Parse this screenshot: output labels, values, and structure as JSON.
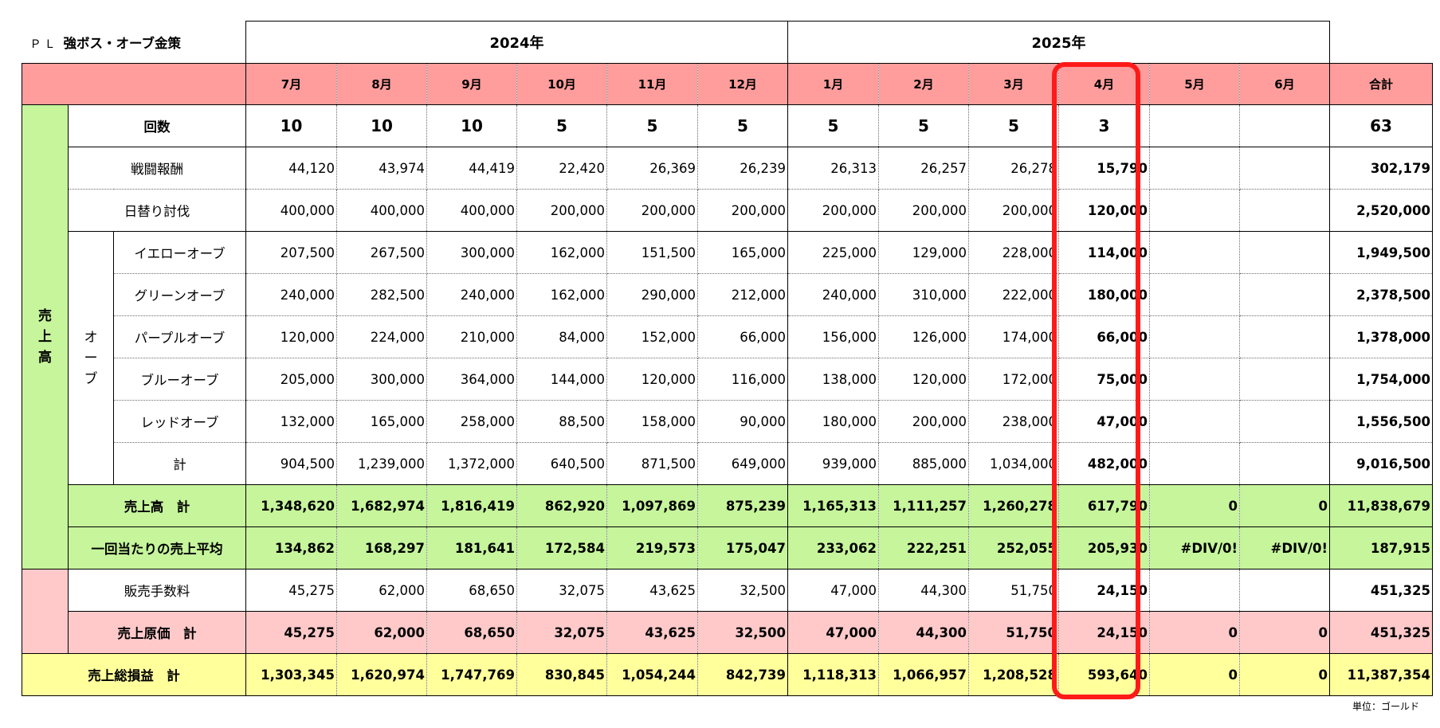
{
  "title": {
    "prefix": "ＰＬ",
    "main": "強ボス・オーブ金策"
  },
  "years": [
    "2024年",
    "2025年"
  ],
  "months": [
    "7月",
    "8月",
    "9月",
    "10月",
    "11月",
    "12月",
    "1月",
    "2月",
    "3月",
    "4月",
    "5月",
    "6月"
  ],
  "total_label": "合計",
  "groups": {
    "sales": [
      "売",
      "上",
      "高"
    ],
    "orb": [
      "オ",
      "ー",
      "ブ"
    ]
  },
  "rows": {
    "count": {
      "label": "回数",
      "values": [
        "10",
        "10",
        "10",
        "5",
        "5",
        "5",
        "5",
        "5",
        "5",
        "3",
        "",
        ""
      ],
      "total": "63"
    },
    "battle": {
      "label": "戦闘報酬",
      "values": [
        "44,120",
        "43,974",
        "44,419",
        "22,420",
        "26,369",
        "26,239",
        "26,313",
        "26,257",
        "26,278",
        "15,790",
        "",
        ""
      ],
      "total": "302,179"
    },
    "daily": {
      "label": "日替り討伐",
      "values": [
        "400,000",
        "400,000",
        "400,000",
        "200,000",
        "200,000",
        "200,000",
        "200,000",
        "200,000",
        "200,000",
        "120,000",
        "",
        ""
      ],
      "total": "2,520,000"
    },
    "yellow": {
      "label": "イエローオーブ",
      "values": [
        "207,500",
        "267,500",
        "300,000",
        "162,000",
        "151,500",
        "165,000",
        "225,000",
        "129,000",
        "228,000",
        "114,000",
        "",
        ""
      ],
      "total": "1,949,500"
    },
    "green": {
      "label": "グリーンオーブ",
      "values": [
        "240,000",
        "282,500",
        "240,000",
        "162,000",
        "290,000",
        "212,000",
        "240,000",
        "310,000",
        "222,000",
        "180,000",
        "",
        ""
      ],
      "total": "2,378,500"
    },
    "purple": {
      "label": "パープルオーブ",
      "values": [
        "120,000",
        "224,000",
        "210,000",
        "84,000",
        "152,000",
        "66,000",
        "156,000",
        "126,000",
        "174,000",
        "66,000",
        "",
        ""
      ],
      "total": "1,378,000"
    },
    "blue": {
      "label": "ブルーオーブ",
      "values": [
        "205,000",
        "300,000",
        "364,000",
        "144,000",
        "120,000",
        "116,000",
        "138,000",
        "120,000",
        "172,000",
        "75,000",
        "",
        ""
      ],
      "total": "1,754,000"
    },
    "red": {
      "label": "レッドオーブ",
      "values": [
        "132,000",
        "165,000",
        "258,000",
        "88,500",
        "158,000",
        "90,000",
        "180,000",
        "200,000",
        "238,000",
        "47,000",
        "",
        ""
      ],
      "total": "1,556,500"
    },
    "orb_total": {
      "label": "計",
      "values": [
        "904,500",
        "1,239,000",
        "1,372,000",
        "640,500",
        "871,500",
        "649,000",
        "939,000",
        "885,000",
        "1,034,000",
        "482,000",
        "",
        ""
      ],
      "total": "9,016,500"
    },
    "sales_total": {
      "label": "売上高　計",
      "values": [
        "1,348,620",
        "1,682,974",
        "1,816,419",
        "862,920",
        "1,097,869",
        "875,239",
        "1,165,313",
        "1,111,257",
        "1,260,278",
        "617,790",
        "0",
        "0"
      ],
      "total": "11,838,679"
    },
    "avg": {
      "label": "一回当たりの売上平均",
      "values": [
        "134,862",
        "168,297",
        "181,641",
        "172,584",
        "219,573",
        "175,047",
        "233,062",
        "222,251",
        "252,055",
        "205,930",
        "#DIV/0!",
        "#DIV/0!"
      ],
      "total": "187,915"
    },
    "fee": {
      "label": "販売手数料",
      "values": [
        "45,275",
        "62,000",
        "68,650",
        "32,075",
        "43,625",
        "32,500",
        "47,000",
        "44,300",
        "51,750",
        "24,150",
        "",
        ""
      ],
      "total": "451,325"
    },
    "cogs": {
      "label": "売上原価　計",
      "values": [
        "45,275",
        "62,000",
        "68,650",
        "32,075",
        "43,625",
        "32,500",
        "47,000",
        "44,300",
        "51,750",
        "24,150",
        "0",
        "0"
      ],
      "total": "451,325"
    },
    "gross": {
      "label": "売上総損益　計",
      "values": [
        "1,303,345",
        "1,620,974",
        "1,747,769",
        "830,845",
        "1,054,244",
        "842,739",
        "1,118,313",
        "1,066,957",
        "1,208,528",
        "593,640",
        "0",
        "0"
      ],
      "total": "11,387,354"
    }
  },
  "highlight_column": "4月",
  "unit_note": "単位：ゴールド"
}
